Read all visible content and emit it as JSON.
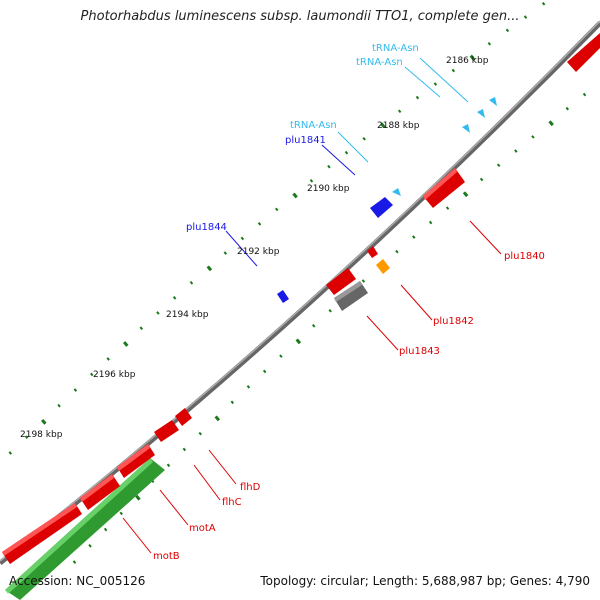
{
  "title": "Photorhabdus luminescens subsp. laumondii TTO1, complete gen...",
  "footer": {
    "accession": "Accession: NC_005126",
    "summary": "Topology: circular; Length: 5,688,987 bp; Genes: 4,790"
  },
  "ticks": [
    "2186 kbp",
    "2188 kbp",
    "2190 kbp",
    "2192 kbp",
    "2194 kbp",
    "2196 kbp",
    "2198 kbp"
  ],
  "genes": {
    "trna_a": "tRNA-Asn",
    "trna_b": "tRNA-Asn",
    "trna_c": "tRNA-Asn",
    "plu1841": "plu1841",
    "plu1844": "plu1844",
    "plu1840": "plu1840",
    "plu1842": "plu1842",
    "plu1843": "plu1843",
    "flhD": "flhD",
    "flhC": "flhC",
    "motA": "motA",
    "motB": "motB"
  },
  "colors": {
    "backbone": "#888888",
    "forward_gene": "#1a1ae6",
    "reverse_gene": "#e60000",
    "trna": "#33bbee",
    "green_gene": "#33aa33",
    "orange_gene": "#ff9900",
    "gray_gene": "#777777",
    "tick_dot": "#1a7a1a"
  }
}
